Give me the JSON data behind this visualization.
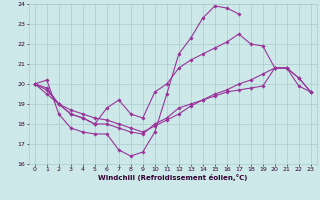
{
  "xlabel": "Windchill (Refroidissement éolien,°C)",
  "bg_color": "#cce8e8",
  "grid_color": "#aacccc",
  "line_color": "#993399",
  "xlim": [
    -0.5,
    23.5
  ],
  "ylim": [
    16,
    24
  ],
  "yticks": [
    16,
    17,
    18,
    19,
    20,
    21,
    22,
    23,
    24
  ],
  "xticks": [
    0,
    1,
    2,
    3,
    4,
    5,
    6,
    7,
    8,
    9,
    10,
    11,
    12,
    13,
    14,
    15,
    16,
    17,
    18,
    19,
    20,
    21,
    22,
    23
  ],
  "lines": [
    {
      "x": [
        0,
        1,
        2,
        3,
        4,
        5,
        6,
        7,
        8,
        9,
        10,
        11,
        12,
        13,
        14,
        15,
        16,
        17,
        18,
        19,
        20,
        21,
        22,
        23
      ],
      "y": [
        20.0,
        20.2,
        18.5,
        17.8,
        17.6,
        17.5,
        17.5,
        16.7,
        16.4,
        16.6,
        17.6,
        19.5,
        21.5,
        22.3,
        23.3,
        23.9,
        23.8,
        23.5,
        null,
        null,
        null,
        null,
        null,
        null
      ]
    },
    {
      "x": [
        0,
        1,
        2,
        3,
        4,
        5,
        6,
        7,
        8,
        9,
        10,
        11,
        12,
        13,
        14,
        15,
        16,
        17,
        18,
        19,
        20,
        21,
        22,
        23
      ],
      "y": [
        20.0,
        19.7,
        19.0,
        18.5,
        18.3,
        18.0,
        18.8,
        19.2,
        18.5,
        18.3,
        19.6,
        20.0,
        20.8,
        21.2,
        21.5,
        21.8,
        22.1,
        22.5,
        22.0,
        21.9,
        20.8,
        20.8,
        19.9,
        19.6
      ]
    },
    {
      "x": [
        0,
        1,
        2,
        3,
        4,
        5,
        6,
        7,
        8,
        9,
        10,
        11,
        12,
        13,
        14,
        15,
        16,
        17,
        18,
        19,
        20,
        21,
        22,
        23
      ],
      "y": [
        20.0,
        19.8,
        19.0,
        18.5,
        18.3,
        18.0,
        18.0,
        17.8,
        17.6,
        17.5,
        18.0,
        18.3,
        18.8,
        19.0,
        19.2,
        19.4,
        19.6,
        19.7,
        19.8,
        19.9,
        20.8,
        20.8,
        20.3,
        19.6
      ]
    },
    {
      "x": [
        0,
        1,
        2,
        3,
        4,
        5,
        6,
        7,
        8,
        9,
        10,
        11,
        12,
        13,
        14,
        15,
        16,
        17,
        18,
        19,
        20,
        21,
        22,
        23
      ],
      "y": [
        20.0,
        19.5,
        19.0,
        18.7,
        18.5,
        18.3,
        18.2,
        18.0,
        17.8,
        17.6,
        17.9,
        18.2,
        18.5,
        18.9,
        19.2,
        19.5,
        19.7,
        20.0,
        20.2,
        20.5,
        20.8,
        20.8,
        20.3,
        19.6
      ]
    }
  ]
}
